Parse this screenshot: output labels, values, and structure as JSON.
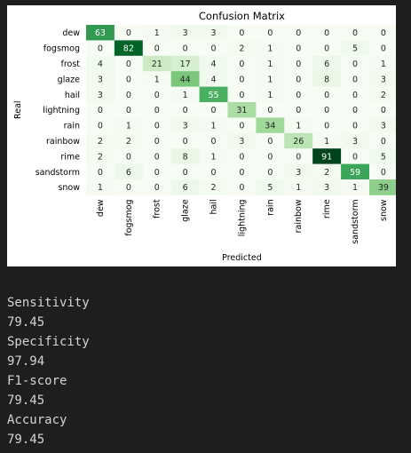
{
  "chart_data": {
    "type": "heatmap",
    "title": "Confusion Matrix",
    "xlabel": "Predicted",
    "ylabel": "Real",
    "row_labels": [
      "dew",
      "fogsmog",
      "frost",
      "glaze",
      "hail",
      "lightning",
      "rain",
      "rainbow",
      "rime",
      "sandstorm",
      "snow"
    ],
    "col_labels": [
      "dew",
      "fogsmog",
      "frost",
      "glaze",
      "hail",
      "lightning",
      "rain",
      "rainbow",
      "rime",
      "sandstorm",
      "snow"
    ],
    "values": [
      [
        63,
        0,
        1,
        3,
        3,
        0,
        0,
        0,
        0,
        0,
        0
      ],
      [
        0,
        82,
        0,
        0,
        0,
        2,
        1,
        0,
        0,
        5,
        0
      ],
      [
        4,
        0,
        21,
        17,
        4,
        0,
        1,
        0,
        6,
        0,
        1
      ],
      [
        3,
        0,
        1,
        44,
        4,
        0,
        1,
        0,
        8,
        0,
        3
      ],
      [
        3,
        0,
        0,
        1,
        55,
        0,
        1,
        0,
        0,
        0,
        2
      ],
      [
        0,
        0,
        0,
        0,
        0,
        31,
        0,
        0,
        0,
        0,
        0
      ],
      [
        0,
        1,
        0,
        3,
        1,
        0,
        34,
        1,
        0,
        0,
        3
      ],
      [
        2,
        2,
        0,
        0,
        0,
        3,
        0,
        26,
        1,
        3,
        0
      ],
      [
        2,
        0,
        0,
        8,
        1,
        0,
        0,
        0,
        91,
        0,
        5
      ],
      [
        0,
        6,
        0,
        0,
        0,
        0,
        0,
        3,
        2,
        59,
        0
      ],
      [
        1,
        0,
        0,
        6,
        2,
        0,
        5,
        1,
        3,
        1,
        39
      ]
    ],
    "colormap": "Greens",
    "colorbar": false
  },
  "metrics": [
    {
      "label": "Sensitivity",
      "value": "79.45"
    },
    {
      "label": "Specificity",
      "value": "97.94"
    },
    {
      "label": "F1-score",
      "value": "79.45"
    },
    {
      "label": "Accuracy",
      "value": "79.45"
    }
  ]
}
